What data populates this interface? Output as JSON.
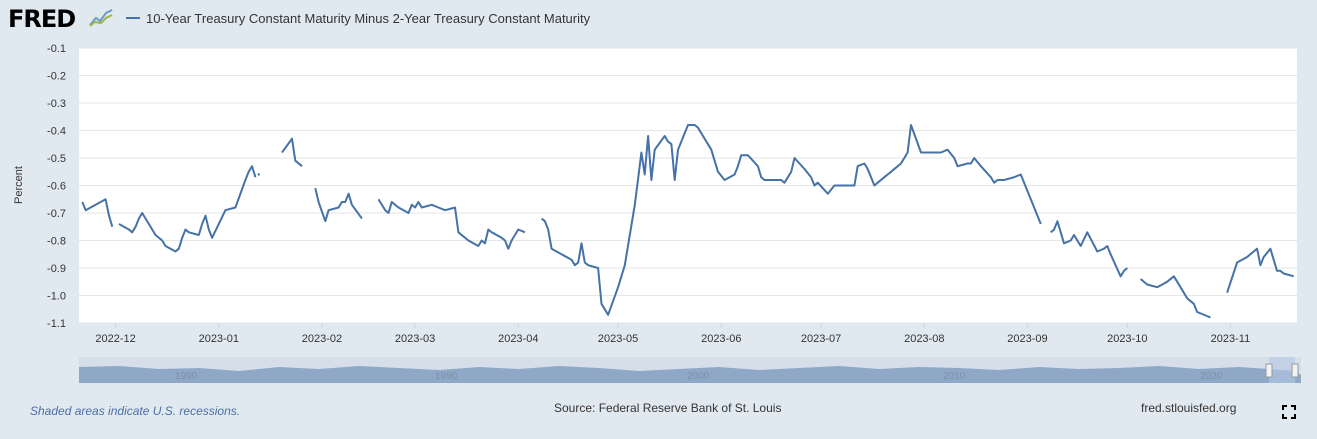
{
  "header": {
    "logo_text": "FRED",
    "logo_icon": "line-chart-icon"
  },
  "legend": {
    "label": "10-Year Treasury Constant Maturity Minus 2-Year Treasury Constant Maturity",
    "color": "#4572a7"
  },
  "footer": {
    "recession_note": "Shaded areas indicate U.S. recessions.",
    "source": "Source: Federal Reserve Bank of St. Louis",
    "url": "fred.stlouisfed.org",
    "fullscreen_icon": "fullscreen-icon"
  },
  "navigator": {
    "labels": [
      "1990",
      "1990",
      "2000",
      "2010",
      "2020"
    ]
  },
  "chart_data": {
    "type": "line",
    "ylabel": "Percent",
    "ylim": [
      -1.1,
      -0.1
    ],
    "yticks": [
      -0.1,
      -0.2,
      -0.3,
      -0.4,
      -0.5,
      -0.6,
      -0.7,
      -0.8,
      -0.9,
      -1.0,
      -1.1
    ],
    "ytick_labels": [
      "-0.1",
      "-0.2",
      "-0.3",
      "-0.4",
      "-0.5",
      "-0.6",
      "-0.7",
      "-0.8",
      "-0.9",
      "-1.0",
      "-1.1"
    ],
    "xlim": [
      "2022-11-20",
      "2023-11-21"
    ],
    "xticks": [
      "2022-12-01",
      "2023-01-01",
      "2023-02-01",
      "2023-03-01",
      "2023-04-01",
      "2023-05-01",
      "2023-06-01",
      "2023-07-01",
      "2023-08-01",
      "2023-09-01",
      "2023-10-01",
      "2023-11-01"
    ],
    "xtick_labels": [
      "2022-12",
      "2023-01",
      "2023-02",
      "2023-03",
      "2023-04",
      "2023-05",
      "2023-06",
      "2023-07",
      "2023-08",
      "2023-09",
      "2023-10",
      "2023-11"
    ],
    "grid": true,
    "legend_position": "top",
    "series": [
      {
        "color": "#4572a7",
        "segments": [
          [
            [
              "2022-11-21",
              -0.66
            ],
            [
              "2022-11-22",
              -0.69
            ],
            [
              "2022-11-25",
              -0.67
            ],
            [
              "2022-11-28",
              -0.65
            ],
            [
              "2022-11-29",
              -0.71
            ],
            [
              "2022-11-30",
              -0.75
            ]
          ],
          [
            [
              "2022-12-02",
              -0.74
            ],
            [
              "2022-12-05",
              -0.76
            ],
            [
              "2022-12-06",
              -0.77
            ],
            [
              "2022-12-07",
              -0.75
            ],
            [
              "2022-12-08",
              -0.72
            ],
            [
              "2022-12-09",
              -0.7
            ],
            [
              "2022-12-12",
              -0.76
            ],
            [
              "2022-12-13",
              -0.78
            ],
            [
              "2022-12-15",
              -0.8
            ],
            [
              "2022-12-16",
              -0.82
            ],
            [
              "2022-12-19",
              -0.84
            ],
            [
              "2022-12-20",
              -0.83
            ],
            [
              "2022-12-21",
              -0.79
            ],
            [
              "2022-12-22",
              -0.76
            ],
            [
              "2022-12-23",
              -0.77
            ],
            [
              "2022-12-26",
              -0.78
            ],
            [
              "2022-12-27",
              -0.74
            ],
            [
              "2022-12-28",
              -0.71
            ],
            [
              "2022-12-29",
              -0.76
            ],
            [
              "2022-12-30",
              -0.79
            ],
            [
              "2023-01-03",
              -0.69
            ],
            [
              "2023-01-06",
              -0.68
            ],
            [
              "2023-01-09",
              -0.58
            ],
            [
              "2023-01-10",
              -0.55
            ],
            [
              "2023-01-11",
              -0.53
            ],
            [
              "2023-01-12",
              -0.57
            ]
          ],
          [
            [
              "2023-01-13",
              -0.56
            ]
          ],
          [
            [
              "2023-01-20",
              -0.48
            ],
            [
              "2023-01-23",
              -0.43
            ],
            [
              "2023-01-24",
              -0.51
            ],
            [
              "2023-01-26",
              -0.53
            ]
          ],
          [
            [
              "2023-01-30",
              -0.61
            ],
            [
              "2023-01-31",
              -0.66
            ],
            [
              "2023-02-02",
              -0.73
            ],
            [
              "2023-02-03",
              -0.69
            ],
            [
              "2023-02-06",
              -0.68
            ],
            [
              "2023-02-07",
              -0.66
            ],
            [
              "2023-02-08",
              -0.66
            ],
            [
              "2023-02-09",
              -0.63
            ],
            [
              "2023-02-10",
              -0.67
            ],
            [
              "2023-02-13",
              -0.72
            ]
          ],
          [
            [
              "2023-02-18",
              -0.65
            ],
            [
              "2023-02-20",
              -0.69
            ],
            [
              "2023-02-21",
              -0.7
            ],
            [
              "2023-02-22",
              -0.66
            ],
            [
              "2023-02-24",
              -0.68
            ],
            [
              "2023-02-27",
              -0.7
            ],
            [
              "2023-02-28",
              -0.67
            ],
            [
              "2023-03-01",
              -0.68
            ],
            [
              "2023-03-02",
              -0.66
            ],
            [
              "2023-03-03",
              -0.68
            ],
            [
              "2023-03-06",
              -0.67
            ],
            [
              "2023-03-08",
              -0.68
            ],
            [
              "2023-03-10",
              -0.69
            ],
            [
              "2023-03-13",
              -0.68
            ],
            [
              "2023-03-14",
              -0.77
            ],
            [
              "2023-03-17",
              -0.8
            ],
            [
              "2023-03-20",
              -0.82
            ],
            [
              "2023-03-21",
              -0.8
            ],
            [
              "2023-03-22",
              -0.81
            ],
            [
              "2023-03-23",
              -0.76
            ],
            [
              "2023-03-24",
              -0.77
            ],
            [
              "2023-03-27",
              -0.79
            ],
            [
              "2023-03-28",
              -0.8
            ],
            [
              "2023-03-29",
              -0.83
            ],
            [
              "2023-03-30",
              -0.8
            ],
            [
              "2023-04-01",
              -0.76
            ],
            [
              "2023-04-03",
              -0.77
            ]
          ],
          [
            [
              "2023-04-08",
              -0.72
            ],
            [
              "2023-04-09",
              -0.73
            ],
            [
              "2023-04-10",
              -0.76
            ],
            [
              "2023-04-11",
              -0.83
            ],
            [
              "2023-04-14",
              -0.85
            ],
            [
              "2023-04-17",
              -0.87
            ],
            [
              "2023-04-18",
              -0.89
            ],
            [
              "2023-04-19",
              -0.88
            ],
            [
              "2023-04-20",
              -0.81
            ],
            [
              "2023-04-21",
              -0.88
            ],
            [
              "2023-04-22",
              -0.89
            ],
            [
              "2023-04-25",
              -0.9
            ],
            [
              "2023-04-26",
              -1.03
            ],
            [
              "2023-04-28",
              -1.07
            ],
            [
              "2023-05-01",
              -0.97
            ],
            [
              "2023-05-03",
              -0.89
            ],
            [
              "2023-05-06",
              -0.67
            ],
            [
              "2023-05-08",
              -0.48
            ],
            [
              "2023-05-09",
              -0.56
            ],
            [
              "2023-05-10",
              -0.42
            ],
            [
              "2023-05-11",
              -0.58
            ],
            [
              "2023-05-12",
              -0.47
            ],
            [
              "2023-05-15",
              -0.42
            ],
            [
              "2023-05-16",
              -0.44
            ],
            [
              "2023-05-17",
              -0.45
            ],
            [
              "2023-05-18",
              -0.58
            ],
            [
              "2023-05-19",
              -0.47
            ],
            [
              "2023-05-22",
              -0.38
            ],
            [
              "2023-05-24",
              -0.38
            ],
            [
              "2023-05-25",
              -0.39
            ],
            [
              "2023-05-26",
              -0.41
            ],
            [
              "2023-05-29",
              -0.47
            ],
            [
              "2023-05-30",
              -0.51
            ],
            [
              "2023-05-31",
              -0.55
            ],
            [
              "2023-06-02",
              -0.58
            ],
            [
              "2023-06-05",
              -0.56
            ],
            [
              "2023-06-06",
              -0.53
            ],
            [
              "2023-06-07",
              -0.49
            ],
            [
              "2023-06-09",
              -0.49
            ],
            [
              "2023-06-12",
              -0.53
            ],
            [
              "2023-06-13",
              -0.57
            ],
            [
              "2023-06-14",
              -0.58
            ],
            [
              "2023-06-15",
              -0.58
            ],
            [
              "2023-06-19",
              -0.58
            ],
            [
              "2023-06-20",
              -0.59
            ],
            [
              "2023-06-22",
              -0.55
            ],
            [
              "2023-06-23",
              -0.5
            ],
            [
              "2023-06-26",
              -0.54
            ],
            [
              "2023-06-28",
              -0.57
            ],
            [
              "2023-06-29",
              -0.6
            ],
            [
              "2023-06-30",
              -0.59
            ],
            [
              "2023-07-03",
              -0.63
            ],
            [
              "2023-07-05",
              -0.6
            ],
            [
              "2023-07-07",
              -0.6
            ],
            [
              "2023-07-10",
              -0.6
            ],
            [
              "2023-07-11",
              -0.6
            ],
            [
              "2023-07-12",
              -0.53
            ],
            [
              "2023-07-14",
              -0.52
            ],
            [
              "2023-07-15",
              -0.54
            ],
            [
              "2023-07-17",
              -0.6
            ],
            [
              "2023-07-18",
              -0.59
            ],
            [
              "2023-07-20",
              -0.57
            ],
            [
              "2023-07-22",
              -0.55
            ],
            [
              "2023-07-24",
              -0.53
            ],
            [
              "2023-07-25",
              -0.52
            ],
            [
              "2023-07-26",
              -0.5
            ],
            [
              "2023-07-27",
              -0.48
            ],
            [
              "2023-07-28",
              -0.38
            ],
            [
              "2023-07-31",
              -0.48
            ],
            [
              "2023-08-04",
              -0.48
            ],
            [
              "2023-08-06",
              -0.48
            ],
            [
              "2023-08-08",
              -0.47
            ],
            [
              "2023-08-10",
              -0.5
            ],
            [
              "2023-08-11",
              -0.53
            ],
            [
              "2023-08-14",
              -0.52
            ],
            [
              "2023-08-15",
              -0.52
            ],
            [
              "2023-08-16",
              -0.5
            ],
            [
              "2023-08-18",
              -0.53
            ],
            [
              "2023-08-21",
              -0.57
            ],
            [
              "2023-08-22",
              -0.59
            ],
            [
              "2023-08-23",
              -0.58
            ],
            [
              "2023-08-25",
              -0.58
            ],
            [
              "2023-08-28",
              -0.57
            ],
            [
              "2023-08-30",
              -0.56
            ],
            [
              "2023-08-31",
              -0.59
            ],
            [
              "2023-09-02",
              -0.65
            ],
            [
              "2023-09-05",
              -0.74
            ]
          ],
          [
            [
              "2023-09-08",
              -0.77
            ],
            [
              "2023-09-09",
              -0.76
            ],
            [
              "2023-09-10",
              -0.73
            ],
            [
              "2023-09-12",
              -0.81
            ],
            [
              "2023-09-14",
              -0.8
            ],
            [
              "2023-09-15",
              -0.78
            ],
            [
              "2023-09-17",
              -0.82
            ],
            [
              "2023-09-19",
              -0.77
            ],
            [
              "2023-09-22",
              -0.84
            ],
            [
              "2023-09-24",
              -0.83
            ],
            [
              "2023-09-25",
              -0.82
            ],
            [
              "2023-09-26",
              -0.85
            ],
            [
              "2023-09-29",
              -0.93
            ],
            [
              "2023-09-30",
              -0.91
            ],
            [
              "2023-10-01",
              -0.9
            ]
          ],
          [
            [
              "2023-10-05",
              -0.94
            ],
            [
              "2023-10-07",
              -0.96
            ],
            [
              "2023-10-10",
              -0.97
            ],
            [
              "2023-10-13",
              -0.95
            ],
            [
              "2023-10-15",
              -0.93
            ],
            [
              "2023-10-17",
              -0.97
            ],
            [
              "2023-10-19",
              -1.01
            ],
            [
              "2023-10-21",
              -1.03
            ],
            [
              "2023-10-22",
              -1.06
            ],
            [
              "2023-10-26",
              -1.08
            ]
          ],
          [
            [
              "2023-10-31",
              -0.99
            ],
            [
              "2023-11-03",
              -0.88
            ],
            [
              "2023-11-06",
              -0.86
            ],
            [
              "2023-11-08",
              -0.84
            ],
            [
              "2023-11-09",
              -0.83
            ],
            [
              "2023-11-10",
              -0.89
            ],
            [
              "2023-11-11",
              -0.86
            ],
            [
              "2023-11-13",
              -0.83
            ],
            [
              "2023-11-15",
              -0.91
            ],
            [
              "2023-11-16",
              -0.91
            ],
            [
              "2023-11-17",
              -0.92
            ],
            [
              "2023-11-20",
              -0.93
            ]
          ]
        ]
      }
    ]
  }
}
